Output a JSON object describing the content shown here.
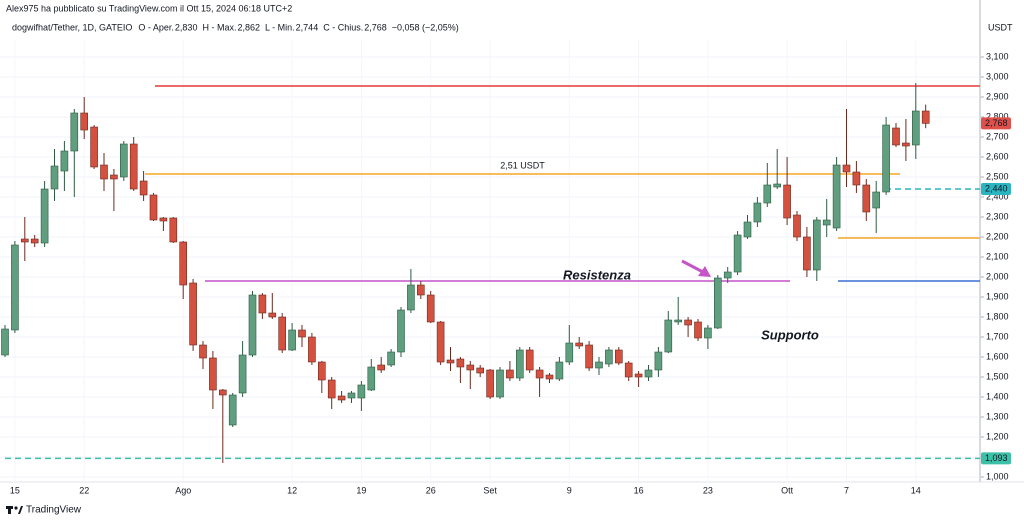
{
  "header": {
    "published": "Alex975 ha pubblicato su TradingView.com il Ott 15, 2024 06:18 UTC+2",
    "symbol": "dogwifhat/Tether, 1D, GATEIO",
    "ohlc": [
      {
        "label": "O - Aper.",
        "value": "2,830"
      },
      {
        "label": "H - Max.",
        "value": "2,862"
      },
      {
        "label": "L - Min.",
        "value": "2,744"
      },
      {
        "label": "C - Chius.",
        "value": "2,768"
      }
    ],
    "change": "−0,058 (−2,05%)"
  },
  "footer": {
    "brand": "TradingView"
  },
  "chart_data": {
    "type": "candlestick",
    "y_unit": "USDT",
    "categories": [
      null,
      "15",
      null,
      null,
      null,
      null,
      null,
      null,
      "22",
      null,
      null,
      null,
      null,
      null,
      null,
      null,
      null,
      null,
      "Ago",
      null,
      null,
      null,
      null,
      null,
      null,
      null,
      null,
      null,
      null,
      "12",
      null,
      null,
      null,
      null,
      null,
      null,
      "19",
      null,
      null,
      null,
      null,
      null,
      null,
      "26",
      null,
      null,
      null,
      null,
      null,
      "Set",
      null,
      null,
      null,
      null,
      null,
      null,
      null,
      "9",
      null,
      null,
      null,
      null,
      null,
      null,
      "16",
      null,
      null,
      null,
      null,
      null,
      null,
      "23",
      null,
      null,
      null,
      null,
      null,
      null,
      null,
      "Ott",
      null,
      null,
      null,
      null,
      null,
      "7",
      null,
      null,
      null,
      null,
      null,
      null,
      "14",
      null
    ],
    "open": [
      1610,
      1735,
      2190,
      2190,
      2170,
      2440,
      2530,
      2630,
      2820,
      2750,
      2560,
      2510,
      2500,
      2665,
      2480,
      2410,
      2295,
      2295,
      2175,
      1970,
      1660,
      1595,
      1435,
      1260,
      1420,
      1610,
      1910,
      1820,
      1800,
      1635,
      1735,
      1700,
      1575,
      1485,
      1405,
      1395,
      1395,
      1435,
      1560,
      1560,
      1625,
      1835,
      1960,
      1910,
      1775,
      1585,
      1590,
      1560,
      1545,
      1535,
      1400,
      1535,
      1495,
      1635,
      1535,
      1510,
      1490,
      1575,
      1670,
      1660,
      1545,
      1565,
      1635,
      1570,
      1515,
      1500,
      1535,
      1625,
      1775,
      1785,
      1775,
      1695,
      1745,
      1995,
      2025,
      2200,
      2275,
      2370,
      2450,
      2460,
      2310,
      2200,
      2035,
      2260,
      2245,
      2560,
      2525,
      2460,
      2345,
      2425,
      2745,
      2670,
      2660,
      2830
    ],
    "high": [
      1760,
      2180,
      2300,
      2210,
      2480,
      2640,
      2680,
      2840,
      2900,
      2760,
      2620,
      2540,
      2680,
      2700,
      2530,
      2420,
      2300,
      2300,
      2180,
      1990,
      1680,
      1630,
      1440,
      1420,
      1680,
      1930,
      1920,
      1920,
      1820,
      1770,
      1760,
      1720,
      1580,
      1500,
      1430,
      1430,
      1480,
      1590,
      1600,
      1640,
      1850,
      2040,
      1980,
      1930,
      1780,
      1650,
      1600,
      1580,
      1560,
      1540,
      1550,
      1580,
      1650,
      1650,
      1550,
      1520,
      1600,
      1760,
      1700,
      1680,
      1600,
      1650,
      1650,
      1580,
      1530,
      1560,
      1650,
      1830,
      1900,
      1800,
      1790,
      1760,
      2010,
      2050,
      2230,
      2310,
      2400,
      2570,
      2640,
      2600,
      2330,
      2250,
      2300,
      2390,
      2600,
      2840,
      2580,
      2490,
      2480,
      2800,
      2770,
      2790,
      2970,
      2862
    ],
    "low": [
      1600,
      1720,
      2080,
      2150,
      2150,
      2380,
      2430,
      2400,
      2690,
      2540,
      2430,
      2330,
      2480,
      2430,
      2380,
      2280,
      2230,
      2170,
      1890,
      1630,
      1540,
      1340,
      1070,
      1250,
      1400,
      1600,
      1790,
      1790,
      1620,
      1630,
      1650,
      1560,
      1420,
      1340,
      1370,
      1370,
      1330,
      1430,
      1520,
      1550,
      1600,
      1820,
      1890,
      1770,
      1560,
      1530,
      1470,
      1440,
      1500,
      1390,
      1390,
      1480,
      1480,
      1520,
      1400,
      1470,
      1480,
      1560,
      1640,
      1530,
      1510,
      1550,
      1560,
      1480,
      1450,
      1480,
      1500,
      1620,
      1760,
      1700,
      1680,
      1640,
      1740,
      1970,
      2010,
      2190,
      2250,
      2350,
      2440,
      2260,
      2180,
      2000,
      1980,
      2200,
      2230,
      2450,
      2420,
      2280,
      2220,
      2410,
      2650,
      2580,
      2590,
      2744
    ],
    "close": [
      1740,
      2160,
      2175,
      2170,
      2440,
      2555,
      2630,
      2820,
      2735,
      2550,
      2490,
      2490,
      2665,
      2440,
      2410,
      2285,
      2280,
      2175,
      1960,
      1660,
      1595,
      1435,
      1410,
      1410,
      1610,
      1910,
      1820,
      1800,
      1635,
      1735,
      1700,
      1575,
      1485,
      1395,
      1385,
      1420,
      1460,
      1550,
      1535,
      1625,
      1835,
      1960,
      1910,
      1775,
      1575,
      1570,
      1550,
      1535,
      1520,
      1400,
      1535,
      1495,
      1635,
      1535,
      1495,
      1490,
      1575,
      1670,
      1655,
      1545,
      1575,
      1635,
      1570,
      1500,
      1500,
      1535,
      1625,
      1785,
      1785,
      1760,
      1695,
      1745,
      1995,
      2025,
      2210,
      2275,
      2370,
      2460,
      2465,
      2295,
      2200,
      2035,
      2285,
      2285,
      2560,
      2525,
      2460,
      2325,
      2425,
      2760,
      2660,
      2655,
      2830,
      2768
    ],
    "last_price_label": "2,768",
    "up_color": "#5f9e7f",
    "down_color": "#d4503f",
    "last_price_color": "#e0504a",
    "ylim": [
      975,
      3385
    ],
    "yticks": [
      {
        "value": 1000,
        "label": "1,000"
      },
      {
        "value": 1100,
        "label": "1,100"
      },
      {
        "value": 1200,
        "label": "1,200"
      },
      {
        "value": 1300,
        "label": "1,300"
      },
      {
        "value": 1400,
        "label": "1,400"
      },
      {
        "value": 1500,
        "label": "1,500"
      },
      {
        "value": 1600,
        "label": "1,600"
      },
      {
        "value": 1700,
        "label": "1,700"
      },
      {
        "value": 1800,
        "label": "1,800"
      },
      {
        "value": 1900,
        "label": "1,900"
      },
      {
        "value": 2000,
        "label": "2,000"
      },
      {
        "value": 2100,
        "label": "2,100"
      },
      {
        "value": 2200,
        "label": "2,200"
      },
      {
        "value": 2300,
        "label": "2,300"
      },
      {
        "value": 2400,
        "label": "2,400"
      },
      {
        "value": 2500,
        "label": "2,500"
      },
      {
        "value": 2600,
        "label": "2,600"
      },
      {
        "value": 2700,
        "label": "2,700"
      },
      {
        "value": 2800,
        "label": "2,800"
      },
      {
        "value": 2900,
        "label": "2,900"
      },
      {
        "value": 3000,
        "label": "3,000"
      },
      {
        "value": 3100,
        "label": "3,100"
      }
    ],
    "grid": true,
    "hlines": [
      {
        "value": 2955,
        "color": "#e53935"
      },
      {
        "value": 2515,
        "color": "#f5a623",
        "label": "2,51 USDT"
      },
      {
        "value": 1980,
        "color": "#c454c8"
      },
      {
        "value": 2440,
        "color": "#2bb5c0",
        "dashed": true,
        "label": "2,440"
      },
      {
        "value": 2195,
        "color": "#f5a623"
      },
      {
        "value": 1980,
        "color": "#3a6fd0"
      },
      {
        "value": 1093,
        "color": "#3cc0a8",
        "dashed": true,
        "label": "1,093"
      }
    ],
    "annotations": [
      {
        "text": "Resistenza",
        "color": "#b44bb8"
      },
      {
        "text": "Supporto",
        "color": "#4a90d9"
      }
    ]
  }
}
